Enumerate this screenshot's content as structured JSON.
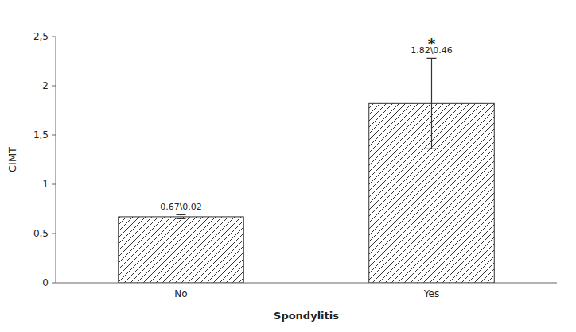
{
  "chart_data": {
    "type": "bar",
    "categories": [
      "No",
      "Yes"
    ],
    "values": [
      0.67,
      1.82
    ],
    "errors": [
      0.02,
      0.46
    ],
    "value_labels": [
      "0.67\\0.02",
      "1.82\\0.46"
    ],
    "color": "white",
    "xlabel": "Spondylitis",
    "ylabel": "CIMT",
    "ylim": [
      0,
      2.5
    ],
    "yticks": [
      0,
      {
        "value": 0.5,
        "label": "0,5"
      },
      1,
      {
        "value": 1.5,
        "label": "1,5"
      },
      2,
      {
        "value": 2.5,
        "label": "2,5"
      }
    ],
    "annotations": [
      {
        "text": "*",
        "category": "Yes"
      }
    ],
    "grid": false
  }
}
